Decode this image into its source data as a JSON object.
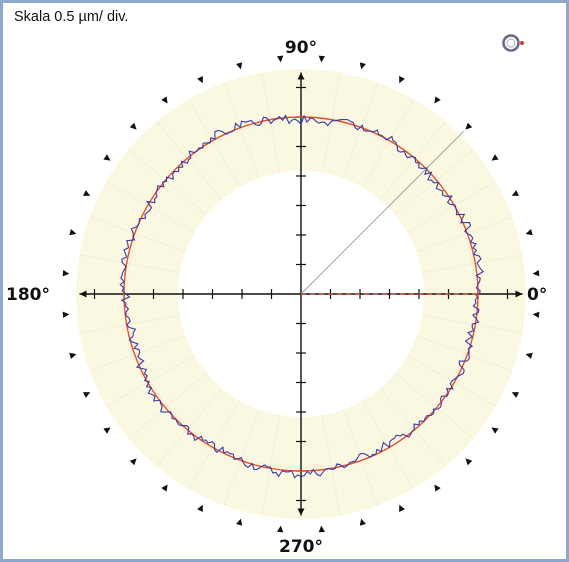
{
  "scale_label": "Skala 0.5 µm/ div.",
  "colors": {
    "frame": "#8fa8cf",
    "band": "#fbf8e2",
    "measured": "#3a3aa6",
    "reference": "#e0502c",
    "axis": "#111111"
  },
  "legend_icon": "roundness-ring-icon",
  "chart_data": {
    "type": "polar",
    "title": "",
    "angle_labels": [
      {
        "angle": 0,
        "text": "0°"
      },
      {
        "angle": 90,
        "text": "90°"
      },
      {
        "angle": 180,
        "text": "180°"
      },
      {
        "angle": 270,
        "text": "270°"
      }
    ],
    "scale": "0.5 µm/ div.",
    "radial_ticks_per_half_axis": 7,
    "angular_markers_count": 36,
    "reference_line_angle_deg": 45,
    "series": [
      {
        "kind": "reference-circle",
        "radius_div": 6.0
      },
      {
        "kind": "measured-profile",
        "nominal_radius_div": 6.0,
        "deviation_div_amplitude": 0.15
      }
    ]
  }
}
